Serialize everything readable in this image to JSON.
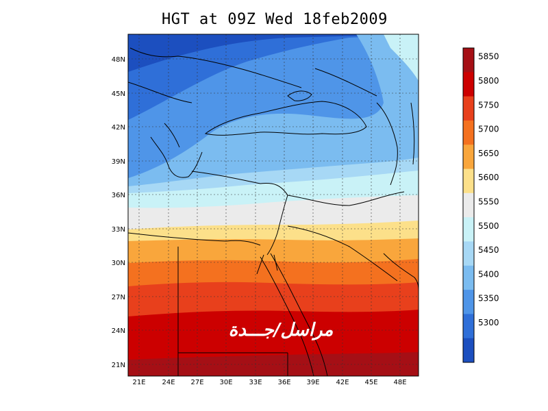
{
  "title": "HGT at 09Z Wed 18feb2009",
  "map": {
    "lat_ticks": [
      "48N",
      "45N",
      "42N",
      "39N",
      "36N",
      "33N",
      "30N",
      "27N",
      "24N",
      "21N"
    ],
    "lon_ticks": [
      "21E",
      "24E",
      "27E",
      "30E",
      "33E",
      "36E",
      "39E",
      "42E",
      "45E",
      "48E"
    ],
    "lat_range": [
      20,
      50
    ],
    "lon_range": [
      20,
      49
    ],
    "grid": true,
    "watermark_text": "مراسل/جـــدة"
  },
  "colorbar": {
    "labels": [
      "5850",
      "5800",
      "5750",
      "5700",
      "5650",
      "5600",
      "5550",
      "5500",
      "5450",
      "5400",
      "5350",
      "5300"
    ],
    "colors": [
      "#a50f15",
      "#cc0000",
      "#e8401c",
      "#f4711f",
      "#f9a63c",
      "#fce08a",
      "#ebebeb",
      "#c9f2f7",
      "#a7d8f5",
      "#7bbcf0",
      "#4f95e8",
      "#2f6fd8",
      "#1c4fbf"
    ]
  }
}
